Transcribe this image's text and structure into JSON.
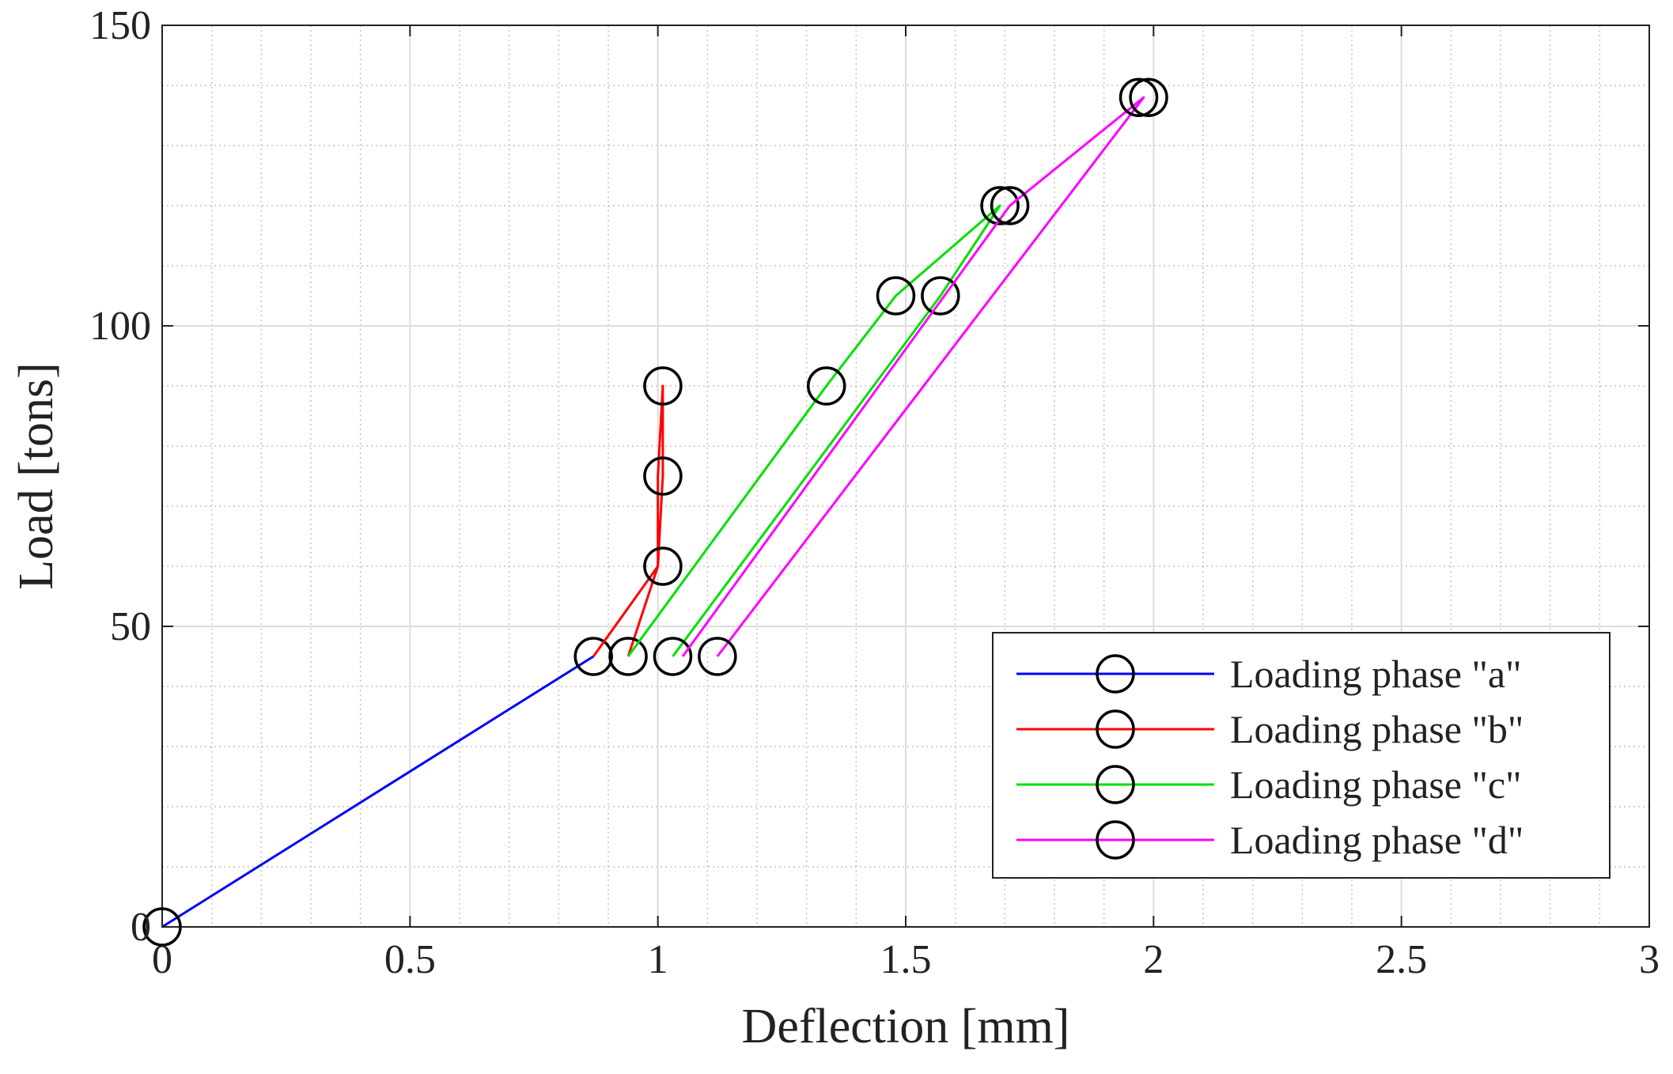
{
  "chart_data": {
    "type": "line",
    "title": "",
    "xlabel": "Deflection  [mm]",
    "ylabel": "Load [tons]",
    "xlim": [
      0,
      3
    ],
    "ylim": [
      0,
      150
    ],
    "xticks": [
      0,
      0.5,
      1,
      1.5,
      2,
      2.5,
      3
    ],
    "xtick_labels": [
      "0",
      "0.5",
      "1",
      "1.5",
      "2",
      "2.5",
      "3"
    ],
    "yticks": [
      0,
      50,
      100,
      150
    ],
    "ytick_labels": [
      "0",
      "50",
      "100",
      "150"
    ],
    "grid": true,
    "minor_grid": true,
    "legend_position": "bottom-right",
    "series": [
      {
        "name": "Loading phase \"a\"",
        "color": "#0000ff",
        "points": [
          [
            0,
            0
          ],
          [
            0.87,
            45
          ]
        ],
        "markers": [
          [
            0,
            0
          ],
          [
            0.87,
            45
          ]
        ]
      },
      {
        "name": "Loading phase \"b\"",
        "color": "#ff0000",
        "points": [
          [
            0.87,
            45
          ],
          [
            1.0,
            60
          ],
          [
            1.01,
            75
          ],
          [
            1.01,
            90
          ],
          [
            1.0,
            75
          ],
          [
            1.0,
            60
          ],
          [
            0.94,
            45
          ]
        ],
        "markers": [
          [
            1.01,
            90
          ],
          [
            1.01,
            75
          ],
          [
            1.01,
            60
          ],
          [
            0.94,
            45
          ]
        ]
      },
      {
        "name": "Loading phase \"c\"",
        "color": "#00e000",
        "points": [
          [
            0.94,
            45
          ],
          [
            1.34,
            90
          ],
          [
            1.48,
            105
          ],
          [
            1.69,
            120
          ],
          [
            1.57,
            105
          ],
          [
            1.03,
            45
          ]
        ],
        "markers": [
          [
            1.34,
            90
          ],
          [
            1.48,
            105
          ],
          [
            1.69,
            120
          ],
          [
            1.57,
            105
          ],
          [
            1.03,
            45
          ]
        ]
      },
      {
        "name": "Loading phase \"d\"",
        "color": "#ff00ff",
        "points": [
          [
            1.05,
            45
          ],
          [
            1.71,
            120
          ],
          [
            1.98,
            138
          ],
          [
            1.12,
            45
          ]
        ],
        "markers": [
          [
            1.71,
            120
          ],
          [
            1.97,
            138
          ],
          [
            1.99,
            138
          ],
          [
            1.12,
            45
          ]
        ]
      }
    ]
  }
}
